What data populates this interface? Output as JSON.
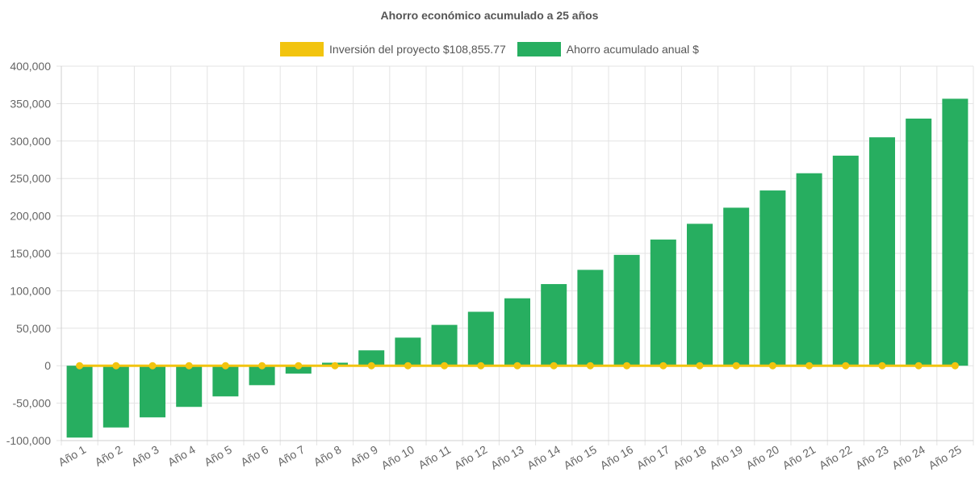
{
  "chart_data": {
    "type": "bar",
    "title": "Ahorro económico acumulado a 25 años",
    "categories": [
      "Año 1",
      "Año 2",
      "Año 3",
      "Año 4",
      "Año 5",
      "Año 6",
      "Año 7",
      "Año 8",
      "Año 9",
      "Año 10",
      "Año 11",
      "Año 12",
      "Año 13",
      "Año 14",
      "Año 15",
      "Año 16",
      "Año 17",
      "Año 18",
      "Año 19",
      "Año 20",
      "Año 21",
      "Año 22",
      "Año 23",
      "Año 24",
      "Año 25"
    ],
    "series": [
      {
        "name": "Inversión del proyecto $108,855.77",
        "type": "line",
        "color": "#f2c40f",
        "values": [
          0,
          0,
          0,
          0,
          0,
          0,
          0,
          0,
          0,
          0,
          0,
          0,
          0,
          0,
          0,
          0,
          0,
          0,
          0,
          0,
          0,
          0,
          0,
          0,
          0
        ]
      },
      {
        "name": "Ahorro acumulado anual $",
        "type": "bar",
        "color": "#27ae60",
        "values": [
          -96000,
          -82500,
          -69000,
          -55000,
          -41000,
          -26000,
          -10500,
          4000,
          20500,
          37500,
          54500,
          72000,
          90000,
          109000,
          128000,
          148000,
          168500,
          189500,
          211000,
          234000,
          257000,
          280500,
          305000,
          330000,
          356500
        ]
      }
    ],
    "ylim": [
      -100000,
      400000
    ],
    "y_ticks": [
      {
        "value": 400000,
        "label": "400,000"
      },
      {
        "value": 350000,
        "label": "350,000"
      },
      {
        "value": 300000,
        "label": "300,000"
      },
      {
        "value": 250000,
        "label": "250,000"
      },
      {
        "value": 200000,
        "label": "200,000"
      },
      {
        "value": 150000,
        "label": "150,000"
      },
      {
        "value": 100000,
        "label": "100,000"
      },
      {
        "value": 50000,
        "label": "50,000"
      },
      {
        "value": 0,
        "label": "0"
      },
      {
        "value": -50000,
        "label": "-50,000"
      },
      {
        "value": -100000,
        "label": "-100,000"
      }
    ],
    "grid": true,
    "legend_position": "top"
  }
}
